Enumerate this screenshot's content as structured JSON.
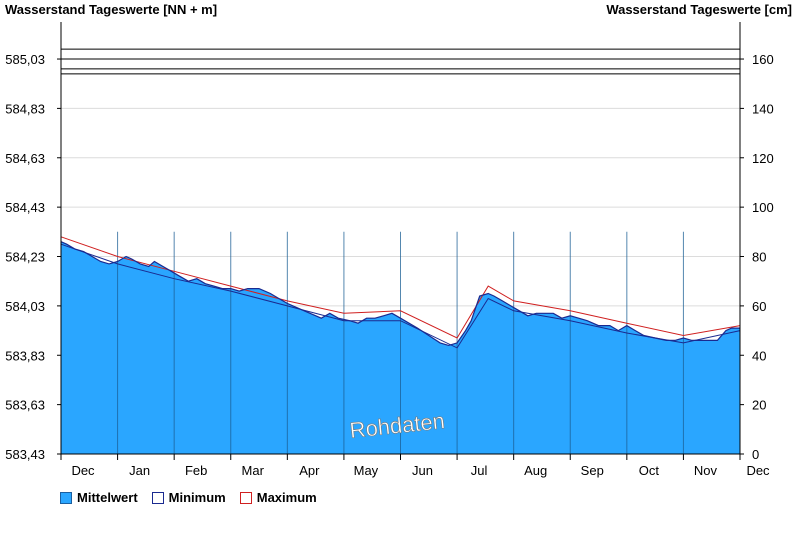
{
  "chart_data": {
    "type": "area",
    "title_left": "Wasserstand Tageswerte [NN + m]",
    "title_right": "Wasserstand Tageswerte [cm]",
    "y_left_ticks": [
      "585,03",
      "584,83",
      "584,63",
      "584,43",
      "584,23",
      "584,03",
      "583,83",
      "583,63",
      "583,43"
    ],
    "y_left_range": [
      583.43,
      585.23
    ],
    "y_right_ticks": [
      0,
      20,
      40,
      60,
      80,
      100,
      120,
      140,
      160
    ],
    "y_right_range": [
      0,
      175
    ],
    "x_ticks": [
      "Dec",
      "Jan",
      "Feb",
      "Mar",
      "Apr",
      "May",
      "Jun",
      "Jul",
      "Aug",
      "Sep",
      "Oct",
      "Nov",
      "Dec"
    ],
    "threshold_lines_cm": [
      164,
      160,
      156,
      154
    ],
    "watermark": "Rohdaten",
    "legend": [
      {
        "label": "Mittelwert",
        "color": "#2aa6ff"
      },
      {
        "label": "Minimum",
        "color": "#1a2a90"
      },
      {
        "label": "Maximum",
        "color": "#d02020"
      }
    ],
    "series": [
      {
        "name": "Mittelwert",
        "x_months": [
          0.0,
          0.1,
          0.25,
          0.4,
          0.55,
          0.7,
          0.85,
          1.0,
          1.15,
          1.25,
          1.4,
          1.55,
          1.65,
          1.8,
          1.95,
          2.1,
          2.25,
          2.4,
          2.55,
          2.7,
          2.85,
          3.0,
          3.15,
          3.3,
          3.5,
          3.7,
          3.85,
          4.0,
          4.2,
          4.4,
          4.6,
          4.75,
          4.9,
          5.1,
          5.25,
          5.4,
          5.55,
          5.7,
          5.85,
          6.0,
          6.15,
          6.3,
          6.5,
          6.7,
          6.85,
          7.0,
          7.15,
          7.25,
          7.4,
          7.55,
          7.65,
          7.8,
          7.95,
          8.1,
          8.25,
          8.4,
          8.55,
          8.7,
          8.85,
          9.0,
          9.15,
          9.3,
          9.5,
          9.7,
          9.85,
          10.0,
          10.15,
          10.3,
          10.5,
          10.7,
          10.85,
          11.0,
          11.15,
          11.3,
          11.45,
          11.6,
          11.75,
          11.85,
          12.0
        ],
        "values_cm": [
          86,
          85,
          83,
          82,
          80,
          78,
          77,
          78,
          80,
          79,
          77,
          76,
          78,
          76,
          74,
          72,
          70,
          71,
          69,
          68,
          67,
          67,
          66,
          67,
          67,
          65,
          63,
          61,
          59,
          57,
          55,
          57,
          55,
          54,
          53,
          55,
          55,
          56,
          57,
          55,
          53,
          51,
          48,
          45,
          44,
          45,
          50,
          54,
          64,
          65,
          64,
          62,
          60,
          58,
          56,
          57,
          57,
          57,
          55,
          56,
          55,
          54,
          52,
          52,
          50,
          52,
          50,
          48,
          47,
          46,
          46,
          47,
          46,
          46,
          46,
          46,
          50,
          51,
          51
        ]
      },
      {
        "name": "Minimum",
        "x_months": [
          0.0,
          1.0,
          2.0,
          3.0,
          4.0,
          5.0,
          6.0,
          7.0,
          7.55,
          8.0,
          9.0,
          10.0,
          11.0,
          12.0
        ],
        "values_cm": [
          85,
          77,
          71,
          66,
          60,
          54,
          54,
          43,
          63,
          58,
          54,
          49,
          45,
          50
        ]
      },
      {
        "name": "Maximum",
        "x_months": [
          0.0,
          1.0,
          2.0,
          3.0,
          4.0,
          5.0,
          6.0,
          7.0,
          7.55,
          8.0,
          9.0,
          10.0,
          11.0,
          12.0
        ],
        "values_cm": [
          88,
          80,
          74,
          68,
          62,
          57,
          58,
          47,
          68,
          62,
          58,
          53,
          48,
          52
        ]
      }
    ]
  }
}
